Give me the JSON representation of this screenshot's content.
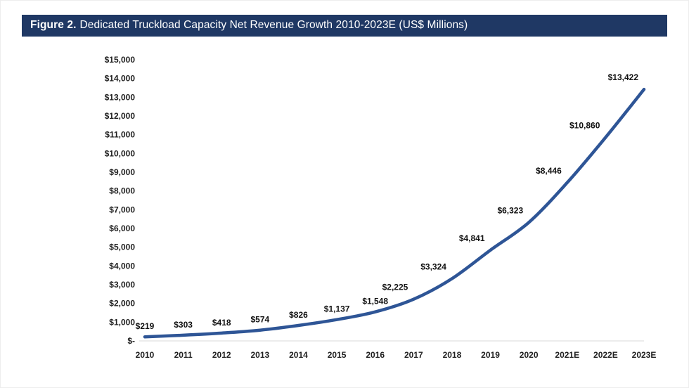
{
  "figure": {
    "label": "Figure 2.",
    "title": "Dedicated Truckload Capacity Net Revenue Growth 2010-2023E (US$ Millions)"
  },
  "chart_data": {
    "type": "line",
    "title": "Dedicated Truckload Capacity Net Revenue Growth 2010-2023E (US$ Millions)",
    "categories": [
      "2010",
      "2011",
      "2012",
      "2013",
      "2014",
      "2015",
      "2016",
      "2017",
      "2018",
      "2019",
      "2020",
      "2021E",
      "2022E",
      "2023E"
    ],
    "values": [
      219,
      303,
      418,
      574,
      826,
      1137,
      1548,
      2225,
      3324,
      4841,
      6323,
      8446,
      10860,
      13422
    ],
    "point_labels": [
      "$219",
      "$303",
      "$418",
      "$574",
      "$826",
      "$1,137",
      "$1,548",
      "$2,225",
      "$3,324",
      "$4,841",
      "$6,323",
      "$8,446",
      "$10,860",
      "$13,422"
    ],
    "xlabel": "",
    "ylabel": "",
    "ylim": [
      0,
      15000
    ],
    "ytick_step": 1000,
    "ytick_labels": [
      "$-",
      "$1,000",
      "$2,000",
      "$3,000",
      "$4,000",
      "$5,000",
      "$6,000",
      "$7,000",
      "$8,000",
      "$9,000",
      "$10,000",
      "$11,000",
      "$12,000",
      "$13,000",
      "$14,000",
      "$15,000"
    ],
    "grid": false,
    "legend": "none",
    "smooth": true,
    "line_color": "#2E5596"
  },
  "colors": {
    "header_bg": "#1F3864",
    "header_text": "#FFFFFF",
    "tick_text": "#1F1F1F",
    "data_label_text": "#111111",
    "axis_line": "#D9D9D9",
    "background": "#FFFFFF"
  }
}
